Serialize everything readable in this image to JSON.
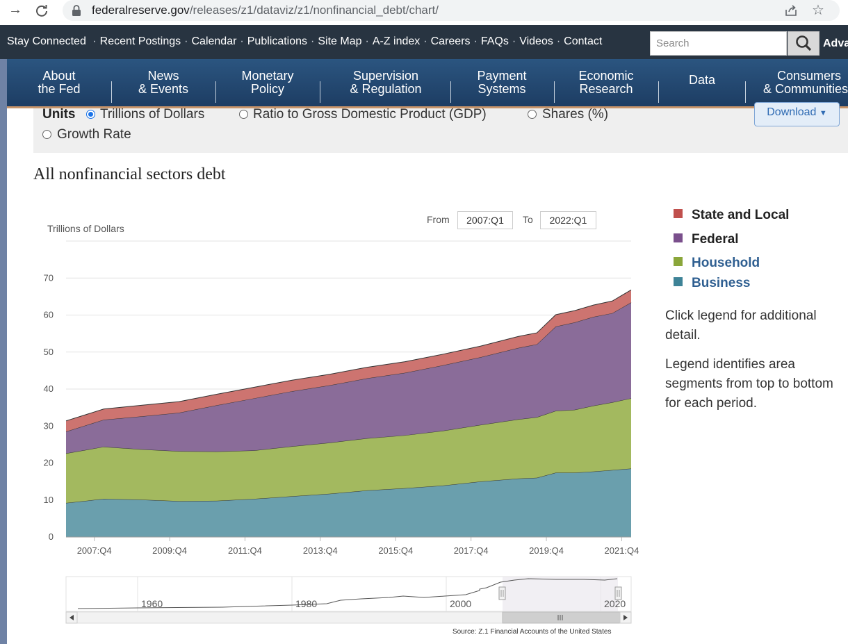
{
  "browser": {
    "url_domain": "federalreserve.gov",
    "url_path": "/releases/z1/dataviz/z1/nonfinancial_debt/chart/"
  },
  "utility_nav": {
    "links": [
      "Stay Connected",
      "Recent Postings",
      "Calendar",
      "Publications",
      "Site Map",
      "A-Z index",
      "Careers",
      "FAQs",
      "Videos",
      "Contact"
    ],
    "search_placeholder": "Search",
    "advanced_label": "Advanced"
  },
  "main_nav": {
    "items": [
      {
        "line1": "About",
        "line2": "the Fed"
      },
      {
        "line1": "News",
        "line2": "& Events"
      },
      {
        "line1": "Monetary",
        "line2": "Policy"
      },
      {
        "line1": "Supervision",
        "line2": "& Regulation"
      },
      {
        "line1": "Payment",
        "line2": "Systems"
      },
      {
        "line1": "Economic",
        "line2": "Research"
      },
      {
        "line1": "Data",
        "line2": ""
      },
      {
        "line1": "Consumers",
        "line2": "& Communities"
      }
    ]
  },
  "units": {
    "label": "Units",
    "options": [
      "Trillions of Dollars",
      "Ratio to Gross Domestic Product (GDP)",
      "Shares (%)",
      "Growth Rate"
    ],
    "selected": "Trillions of Dollars"
  },
  "download_label": "Download",
  "chart_title": "All nonfinancial sectors debt",
  "range": {
    "from_label": "From",
    "from_value": "2007:Q1",
    "to_label": "To",
    "to_value": "2022:Q1"
  },
  "legend": {
    "items": [
      {
        "label": "State and Local",
        "color": "#c0504d"
      },
      {
        "label": "Federal",
        "color": "#7a4f8c"
      },
      {
        "label": "Household",
        "color": "#8aa63a"
      },
      {
        "label": "Business",
        "color": "#3e8397"
      }
    ],
    "note1": "Click legend for additional detail.",
    "note2": "Legend identifies area segments from top to bottom for each period."
  },
  "source": "Source: Z.1 Financial Accounts of the United States",
  "chart_data": {
    "type": "area",
    "stacked": true,
    "ylabel": "Trillions of Dollars",
    "ylim": [
      0,
      80
    ],
    "yticks": [
      0,
      10,
      20,
      30,
      40,
      50,
      60,
      70
    ],
    "xrange": [
      "2007:Q1",
      "2022:Q1"
    ],
    "xtick_labels": [
      "2007:Q4",
      "2009:Q4",
      "2011:Q4",
      "2013:Q4",
      "2015:Q4",
      "2017:Q4",
      "2019:Q4",
      "2021:Q4"
    ],
    "x": [
      2007.0,
      2008.0,
      2009.0,
      2010.0,
      2011.0,
      2012.0,
      2013.0,
      2014.0,
      2015.0,
      2016.0,
      2017.0,
      2018.0,
      2019.0,
      2019.5,
      2020.0,
      2020.5,
      2021.0,
      2021.5,
      2022.0
    ],
    "series": [
      {
        "name": "Business",
        "values": [
          9.2,
          10.3,
          10.1,
          9.7,
          9.8,
          10.3,
          11.0,
          11.7,
          12.6,
          13.2,
          13.9,
          15.0,
          15.8,
          16.0,
          17.4,
          17.4,
          17.7,
          18.1,
          18.5
        ]
      },
      {
        "name": "Household",
        "values": [
          13.4,
          14.1,
          13.6,
          13.5,
          13.3,
          13.1,
          13.5,
          13.8,
          14.1,
          14.3,
          14.8,
          15.3,
          16.0,
          16.4,
          16.7,
          17.0,
          17.8,
          18.3,
          19.0
        ]
      },
      {
        "name": "Federal",
        "values": [
          5.9,
          7.3,
          8.9,
          10.4,
          12.5,
          14.1,
          14.9,
          15.5,
          16.2,
          16.9,
          17.7,
          18.3,
          19.3,
          19.7,
          22.8,
          23.6,
          24.0,
          24.1,
          25.9
        ]
      },
      {
        "name": "State and Local",
        "values": [
          2.9,
          2.9,
          3.0,
          3.0,
          3.0,
          3.0,
          3.0,
          3.0,
          3.0,
          3.0,
          3.0,
          3.0,
          3.1,
          3.1,
          3.2,
          3.2,
          3.2,
          3.3,
          3.4
        ]
      }
    ],
    "navigator": {
      "year_labels": [
        "1960",
        "1980",
        "2000",
        "2020"
      ]
    }
  }
}
